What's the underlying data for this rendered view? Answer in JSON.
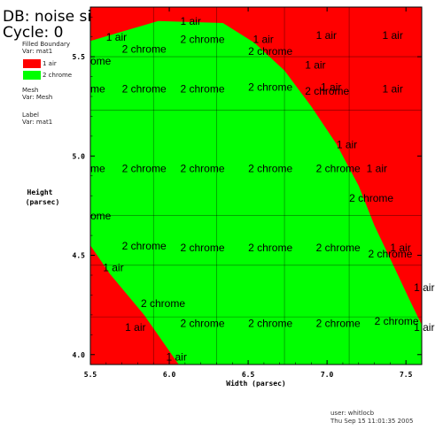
{
  "header": {
    "db": "DB: noise silo",
    "cycle": "Cycle: 0"
  },
  "legend": {
    "plot1_line1": "Filled Boundary",
    "plot1_line2": "Var: mat1",
    "items": [
      {
        "label": "1 air",
        "color": "#ff0000"
      },
      {
        "label": "2 chrome",
        "color": "#00ff00"
      }
    ],
    "plot2_line1": "Mesh",
    "plot2_line2": "Var: Mesh",
    "plot3_line1": "Label",
    "plot3_line2": "Var: mat1"
  },
  "footer": {
    "user": "user: whitlocb",
    "date": "Thu Sep 15 11:01:35 2005"
  },
  "chart_data": {
    "type": "area",
    "xlabel": "Width (parsec)",
    "ylabel_line1": "Height",
    "ylabel_line2": "(parsec)",
    "xlim": [
      5.5,
      7.6
    ],
    "ylim": [
      3.95,
      5.75
    ],
    "x_ticks": [
      5.5,
      6.0,
      6.5,
      7.0,
      7.5
    ],
    "x_tick_labels": [
      "5.5",
      "6.0",
      "6.5",
      "7.0",
      "7.5"
    ],
    "y_ticks": [
      4.0,
      4.5,
      5.0,
      5.5
    ],
    "y_tick_labels": [
      "4.0",
      "4.5",
      "5.0",
      "5.5"
    ],
    "mesh_x": [
      5.5,
      5.9,
      6.3,
      6.73,
      7.14
    ],
    "mesh_y": [
      4.19,
      4.45,
      4.7,
      5.23,
      5.5
    ],
    "background_material": {
      "name": "1 air",
      "color": "#ff0000"
    },
    "regions": [
      {
        "material": "2 chrome",
        "color": "#00ff00",
        "boundary": [
          [
            5.5,
            5.58
          ],
          [
            5.93,
            5.68
          ],
          [
            6.34,
            5.67
          ],
          [
            6.54,
            5.57
          ],
          [
            6.73,
            5.43
          ],
          [
            6.9,
            5.25
          ],
          [
            7.06,
            5.06
          ],
          [
            7.2,
            4.85
          ],
          [
            7.3,
            4.65
          ],
          [
            7.42,
            4.45
          ],
          [
            7.52,
            4.28
          ],
          [
            7.6,
            4.15
          ],
          [
            7.6,
            3.95
          ],
          [
            6.06,
            3.95
          ],
          [
            5.84,
            4.2
          ],
          [
            5.62,
            4.41
          ],
          [
            5.5,
            4.55
          ]
        ]
      }
    ],
    "labels": [
      {
        "text": "1 air",
        "x": 6.07,
        "y": 5.66
      },
      {
        "text": "1 air",
        "x": 5.6,
        "y": 5.58
      },
      {
        "text": "2 chrome",
        "x": 6.07,
        "y": 5.57
      },
      {
        "text": "1 air",
        "x": 6.53,
        "y": 5.57
      },
      {
        "text": "1 air",
        "x": 6.93,
        "y": 5.59
      },
      {
        "text": "1 air",
        "x": 7.35,
        "y": 5.59
      },
      {
        "text": "2 chrome",
        "x": 5.7,
        "y": 5.52
      },
      {
        "text": "2 chrome",
        "x": 6.5,
        "y": 5.51
      },
      {
        "text": "ome",
        "x": 5.5,
        "y": 5.46
      },
      {
        "text": "1 air",
        "x": 6.86,
        "y": 5.44
      },
      {
        "text": "me",
        "x": 5.5,
        "y": 5.32
      },
      {
        "text": "2 chrome",
        "x": 5.7,
        "y": 5.32
      },
      {
        "text": "2 chrome",
        "x": 6.07,
        "y": 5.32
      },
      {
        "text": "2 chrome",
        "x": 6.5,
        "y": 5.33
      },
      {
        "text": "1 air",
        "x": 6.96,
        "y": 5.33
      },
      {
        "text": "2 chrome",
        "x": 6.86,
        "y": 5.31
      },
      {
        "text": "1 air",
        "x": 7.35,
        "y": 5.32
      },
      {
        "text": "1 air",
        "x": 7.06,
        "y": 5.04
      },
      {
        "text": "me",
        "x": 5.5,
        "y": 4.92
      },
      {
        "text": "2 chrome",
        "x": 5.7,
        "y": 4.92
      },
      {
        "text": "2 chrome",
        "x": 6.07,
        "y": 4.92
      },
      {
        "text": "2 chrome",
        "x": 6.5,
        "y": 4.92
      },
      {
        "text": "2 chrome",
        "x": 6.93,
        "y": 4.92
      },
      {
        "text": "1 air",
        "x": 7.25,
        "y": 4.92
      },
      {
        "text": "2 chrome",
        "x": 7.14,
        "y": 4.77
      },
      {
        "text": "ome",
        "x": 5.5,
        "y": 4.68
      },
      {
        "text": "2 chrome",
        "x": 5.7,
        "y": 4.53
      },
      {
        "text": "2 chrome",
        "x": 6.07,
        "y": 4.52
      },
      {
        "text": "2 chrome",
        "x": 6.5,
        "y": 4.52
      },
      {
        "text": "2 chrome",
        "x": 6.93,
        "y": 4.52
      },
      {
        "text": "1 air",
        "x": 7.4,
        "y": 4.52
      },
      {
        "text": "2 chrome",
        "x": 7.26,
        "y": 4.49
      },
      {
        "text": "1 air",
        "x": 5.58,
        "y": 4.42
      },
      {
        "text": "1 air",
        "x": 7.55,
        "y": 4.32
      },
      {
        "text": "2 chrome",
        "x": 5.82,
        "y": 4.24
      },
      {
        "text": "1 air",
        "x": 5.72,
        "y": 4.12
      },
      {
        "text": "2 chrome",
        "x": 6.07,
        "y": 4.14
      },
      {
        "text": "2 chrome",
        "x": 6.5,
        "y": 4.14
      },
      {
        "text": "2 chrome",
        "x": 6.93,
        "y": 4.14
      },
      {
        "text": "2 chrome",
        "x": 7.3,
        "y": 4.15
      },
      {
        "text": "1 air",
        "x": 7.55,
        "y": 4.12
      },
      {
        "text": "1 air",
        "x": 5.98,
        "y": 3.97
      }
    ]
  }
}
